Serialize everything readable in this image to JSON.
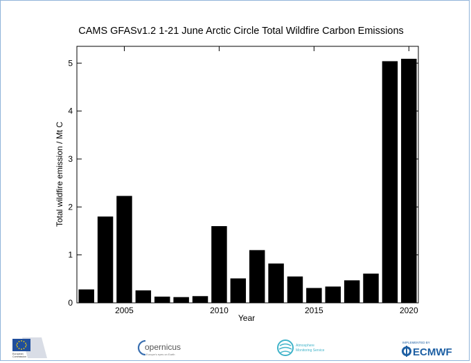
{
  "chart_data": {
    "type": "bar",
    "title": "CAMS GFASv1.2 1-21 June Arctic Circle Total Wildfire Carbon Emissions",
    "xlabel": "Year",
    "ylabel": "Total wildfire emission / Mt C",
    "categories": [
      2003,
      2004,
      2005,
      2006,
      2007,
      2008,
      2009,
      2010,
      2011,
      2012,
      2013,
      2014,
      2015,
      2016,
      2017,
      2018,
      2019,
      2020
    ],
    "values": [
      0.28,
      1.8,
      2.23,
      0.26,
      0.13,
      0.12,
      0.14,
      1.6,
      0.51,
      1.1,
      0.82,
      0.55,
      0.31,
      0.34,
      0.47,
      0.61,
      5.04,
      5.09
    ],
    "ylim": [
      0,
      5.35
    ],
    "xlim": [
      2002.5,
      2020.5
    ],
    "yticks": [
      0,
      1,
      2,
      3,
      4,
      5
    ],
    "xticks": [
      2005,
      2010,
      2015,
      2020
    ],
    "bar_color": "#000000",
    "grid": false
  },
  "footer": {
    "eu_label_1": "European",
    "eu_label_2": "Commission",
    "copernicus_name": "opernicus",
    "copernicus_tagline": "Europe's eyes on Earth",
    "atmosphere_line1": "Atmosphere",
    "atmosphere_line2": "Monitoring Service",
    "ecmwf_prefix": "IMPLEMENTED BY",
    "ecmwf_name": "ECMWF"
  },
  "colors": {
    "frame": "#8fb3d9",
    "eu_blue": "#1f4e9c",
    "eu_star": "#ffd500",
    "copernicus_blue": "#3a6fb0",
    "atmosphere_teal": "#3fb3c9",
    "ecmwf_blue": "#1d5fa3"
  }
}
